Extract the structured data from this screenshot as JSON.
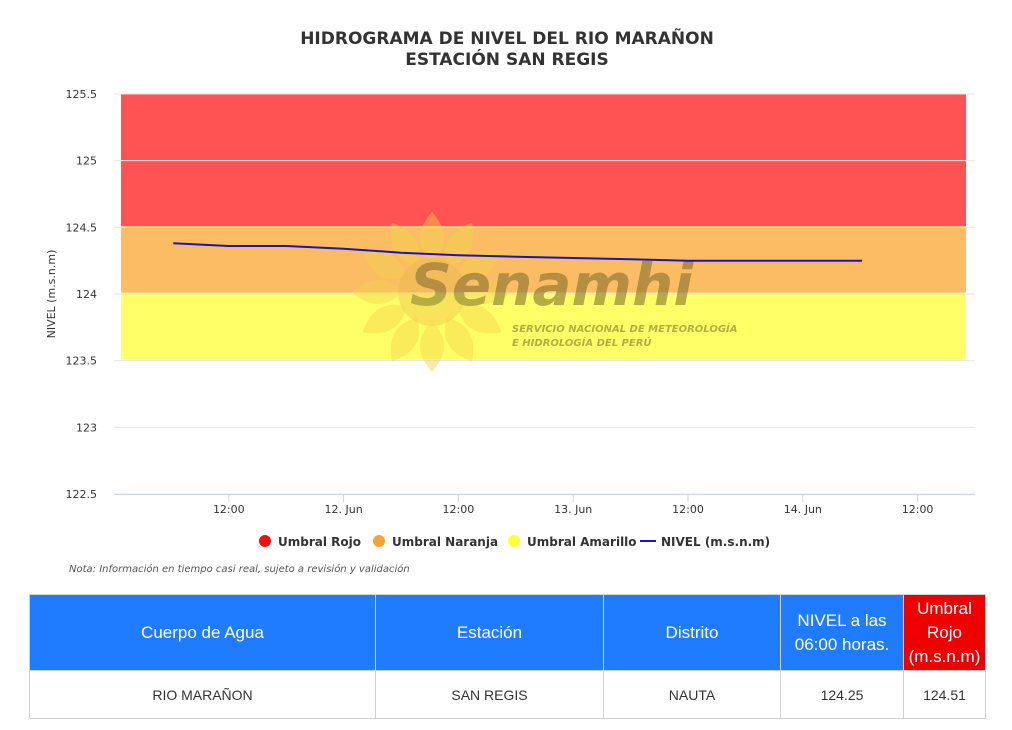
{
  "chart_data": {
    "type": "line",
    "title": "HIDROGRAMA DE NIVEL DEL RIO MARAÑON",
    "subtitle": "ESTACIÓN SAN REGIS",
    "ylabel": "NIVEL (m.s.n.m)",
    "ylim": [
      122.5,
      125.5
    ],
    "yticks": [
      122.5,
      123,
      123.5,
      124,
      124.5,
      125,
      125.5
    ],
    "ytick_labels": [
      "122.5",
      "123",
      "123.5",
      "124",
      "124.5",
      "125",
      "125.5"
    ],
    "xlim_hours": [
      0,
      90
    ],
    "xticks": [
      {
        "label": "12:00",
        "hours": 12
      },
      {
        "label": "12. Jun",
        "hours": 24
      },
      {
        "label": "12:00",
        "hours": 36
      },
      {
        "label": "13. Jun",
        "hours": 48
      },
      {
        "label": "12:00",
        "hours": 60
      },
      {
        "label": "14. Jun",
        "hours": 72
      },
      {
        "label": "12:00",
        "hours": 84
      }
    ],
    "bands": [
      {
        "name": "Umbral Rojo",
        "from": 124.51,
        "to": 125.5,
        "color": "#ff5252"
      },
      {
        "name": "Umbral Naranja",
        "from": 124.01,
        "to": 124.51,
        "color": "#fbbc63"
      },
      {
        "name": "Umbral Amarillo",
        "from": 123.51,
        "to": 124.01,
        "color": "#ffff66"
      }
    ],
    "series": [
      {
        "name": "NIVEL (m.s.n.m)",
        "color": "#1a14c2",
        "points": [
          [
            6.2,
            124.38
          ],
          [
            12,
            124.36
          ],
          [
            18,
            124.36
          ],
          [
            24,
            124.34
          ],
          [
            30,
            124.31
          ],
          [
            36,
            124.29
          ],
          [
            42,
            124.28
          ],
          [
            48,
            124.27
          ],
          [
            54,
            124.26
          ],
          [
            60,
            124.25
          ],
          [
            66,
            124.25
          ],
          [
            72,
            124.25
          ],
          [
            78.2,
            124.25
          ]
        ]
      }
    ],
    "legend": {
      "placement": "bottom",
      "items": [
        {
          "label": "Umbral Rojo",
          "color": "#ee1111",
          "shape": "circle"
        },
        {
          "label": "Umbral Naranja",
          "color": "#f5a336",
          "shape": "circle"
        },
        {
          "label": "Umbral Amarillo",
          "color": "#ffff33",
          "shape": "circle"
        },
        {
          "label": "NIVEL (m.s.n.m)",
          "color": "#1a14c2",
          "shape": "line"
        }
      ]
    },
    "grid": true
  },
  "watermark": {
    "brand": "Senamhi",
    "line1": "SERVICIO NACIONAL DE METEOROLOGÍA",
    "line2": "E HIDROLOGÍA DEL PERÚ"
  },
  "note": "Nota: Información en tiempo casi real, sujeto a revisión y validación",
  "table": {
    "headers": [
      "Cuerpo de Agua",
      "Estación",
      "Distrito",
      "NIVEL a las 06:00 horas.",
      "Umbral Rojo (m.s.n.m)"
    ],
    "row": [
      "RIO MARAÑON",
      "SAN REGIS",
      "NAUTA",
      "124.25",
      "124.51"
    ]
  }
}
